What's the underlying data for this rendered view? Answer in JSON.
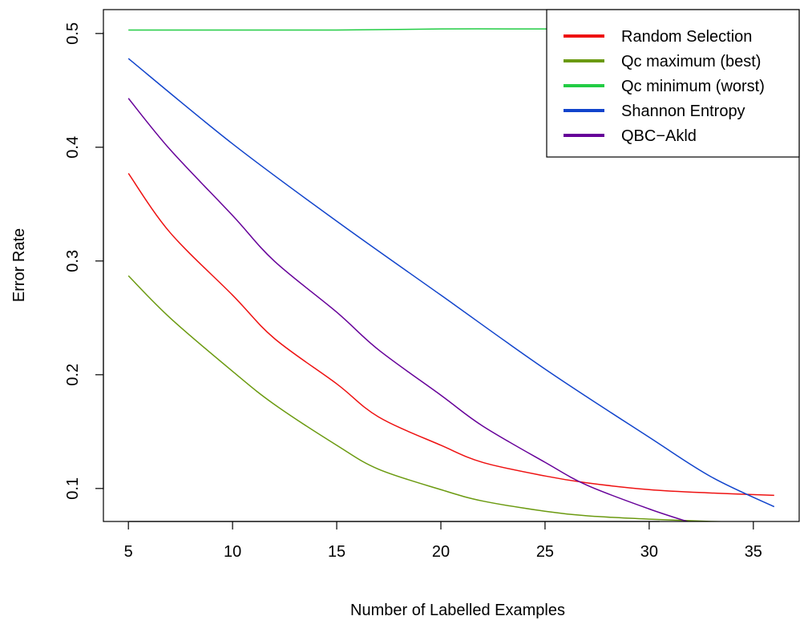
{
  "chart_data": {
    "type": "line",
    "title": "",
    "xlabel": "Number of Labelled Examples",
    "ylabel": "Error Rate",
    "xlim": [
      3.8,
      37.2
    ],
    "ylim": [
      0.071,
      0.521
    ],
    "xticks": [
      "5",
      "10",
      "15",
      "20",
      "25",
      "30",
      "35"
    ],
    "yticks": [
      "0.1",
      "0.2",
      "0.3",
      "0.4",
      "0.5"
    ],
    "grid": false,
    "legend_position": "top-right",
    "series": [
      {
        "name": "Random Selection",
        "color": "#ee1111",
        "x": [
          5,
          7,
          10,
          12,
          15,
          17,
          20,
          22,
          25,
          27,
          30,
          33,
          36
        ],
        "y": [
          0.377,
          0.325,
          0.27,
          0.232,
          0.192,
          0.163,
          0.138,
          0.123,
          0.111,
          0.105,
          0.099,
          0.096,
          0.094
        ]
      },
      {
        "name": "Qc maximum (best)",
        "color": "#6b9a10",
        "x": [
          5,
          7,
          10,
          12,
          15,
          17,
          20,
          22,
          25,
          27,
          30,
          33,
          36
        ],
        "y": [
          0.287,
          0.25,
          0.203,
          0.174,
          0.138,
          0.117,
          0.099,
          0.089,
          0.08,
          0.076,
          0.073,
          0.071,
          0.07
        ]
      },
      {
        "name": "Qc minimum (worst)",
        "color": "#22cc44",
        "x": [
          5,
          10,
          15,
          20,
          25,
          27
        ],
        "y": [
          0.503,
          0.503,
          0.503,
          0.504,
          0.504,
          0.504
        ]
      },
      {
        "name": "Shannon Entropy",
        "color": "#1144cc",
        "x": [
          5,
          10,
          15,
          20,
          25,
          30,
          33,
          36
        ],
        "y": [
          0.478,
          0.403,
          0.335,
          0.27,
          0.205,
          0.145,
          0.11,
          0.084
        ]
      },
      {
        "name": "QBC−Akld",
        "color": "#660099",
        "x": [
          5,
          7,
          10,
          12,
          15,
          17,
          20,
          22,
          25,
          27,
          30,
          32
        ],
        "y": [
          0.443,
          0.398,
          0.34,
          0.3,
          0.255,
          0.222,
          0.182,
          0.155,
          0.123,
          0.103,
          0.082,
          0.07
        ]
      }
    ]
  }
}
